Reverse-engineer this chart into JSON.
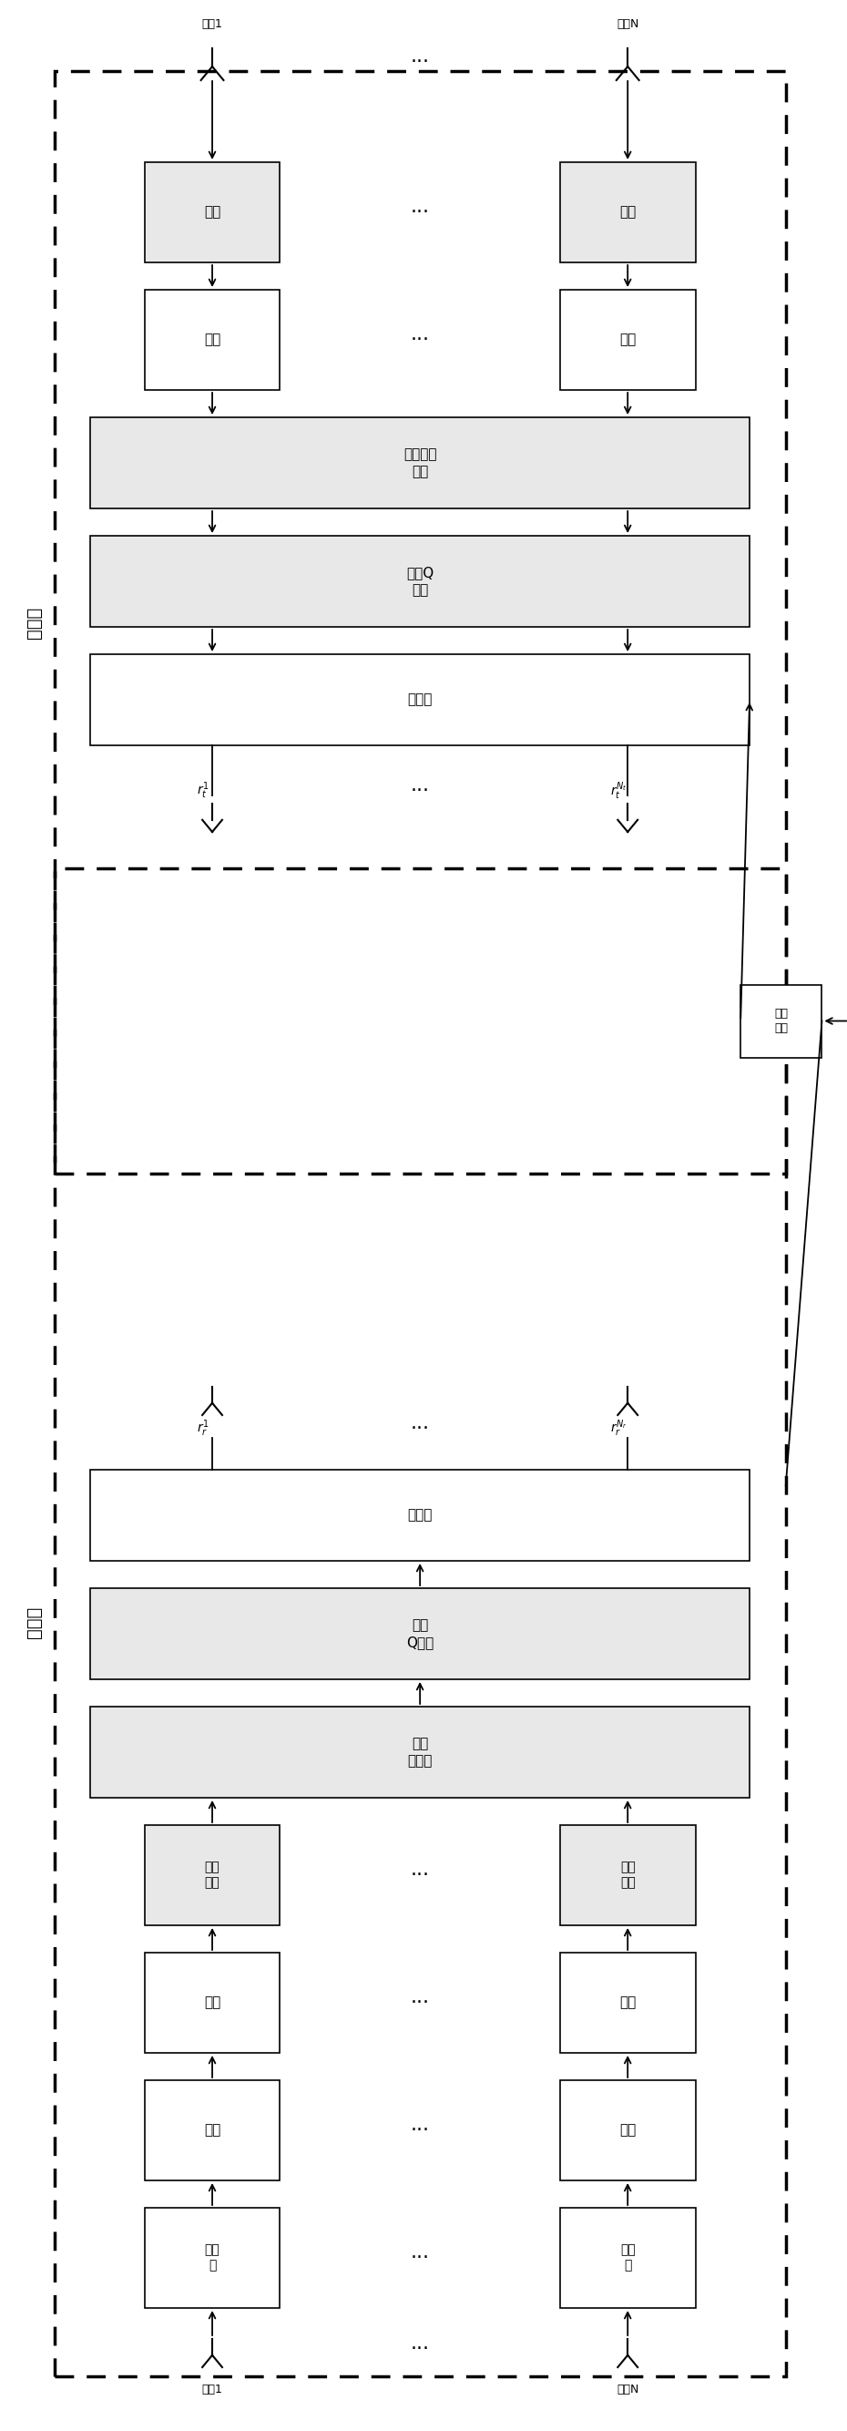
{
  "bg_color": "#ffffff",
  "tx_label": "发送端",
  "rx_label": "接收端",
  "chain1_label": "天线1",
  "chain2_label": "天线N",
  "datasrc": "数据\n源",
  "encode": "编码",
  "modulate": "调制",
  "beam_mod": "波束\n调制",
  "dir_dist": "定向\n分发板",
  "dir_q": "定向\nQ数板",
  "precode": "预编码",
  "channel_est": "信道\n估计",
  "rx_precode": "预编码",
  "space_q": "空间Q\n数板",
  "space_wave": "空间波达\n数板",
  "demod": "解调",
  "decode": "译码",
  "dots": "···",
  "sig_tx1": "r_t^1",
  "sig_txN": "r_t^{N_t}",
  "sig_rx1": "r_r^1",
  "sig_rxN": "r_r^{N_r}"
}
